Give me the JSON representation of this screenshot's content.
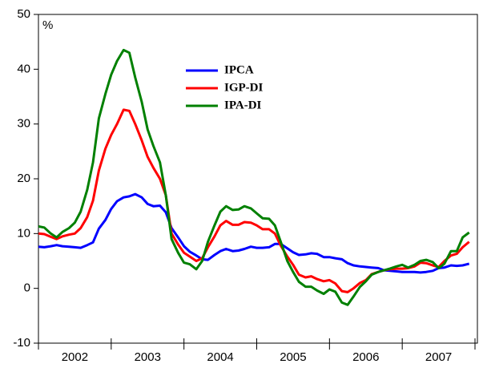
{
  "chart_data": {
    "type": "line",
    "y_label": "%",
    "x": [
      2002,
      2002.08,
      2002.17,
      2002.25,
      2002.33,
      2002.42,
      2002.5,
      2002.58,
      2002.67,
      2002.75,
      2002.83,
      2002.92,
      2003,
      2003.08,
      2003.17,
      2003.25,
      2003.33,
      2003.42,
      2003.5,
      2003.58,
      2003.67,
      2003.75,
      2003.83,
      2003.92,
      2004,
      2004.08,
      2004.17,
      2004.25,
      2004.33,
      2004.42,
      2004.5,
      2004.58,
      2004.67,
      2004.75,
      2004.83,
      2004.92,
      2005,
      2005.08,
      2005.17,
      2005.25,
      2005.33,
      2005.42,
      2005.5,
      2005.58,
      2005.67,
      2005.75,
      2005.83,
      2005.92,
      2006,
      2006.08,
      2006.17,
      2006.25,
      2006.33,
      2006.42,
      2006.5,
      2006.58,
      2006.67,
      2006.75,
      2006.83,
      2006.92,
      2007,
      2007.08,
      2007.17,
      2007.25,
      2007.33,
      2007.42,
      2007.5,
      2007.58,
      2007.67,
      2007.75,
      2007.83,
      2007.92
    ],
    "series": [
      {
        "name": "IPCA",
        "color": "#0000ff",
        "values": [
          7.6,
          7.5,
          7.7,
          7.9,
          7.7,
          7.6,
          7.5,
          7.4,
          7.9,
          8.4,
          10.9,
          12.5,
          14.5,
          15.9,
          16.6,
          16.8,
          17.2,
          16.6,
          15.4,
          15.0,
          15.1,
          13.9,
          11.0,
          9.3,
          7.7,
          6.7,
          6.0,
          5.3,
          5.2,
          6.1,
          6.8,
          7.2,
          6.8,
          6.9,
          7.2,
          7.6,
          7.4,
          7.4,
          7.5,
          8.1,
          8.1,
          7.3,
          6.6,
          6.1,
          6.2,
          6.4,
          6.3,
          5.7,
          5.7,
          5.5,
          5.3,
          4.6,
          4.2,
          4.0,
          3.9,
          3.8,
          3.7,
          3.3,
          3.2,
          3.1,
          3.0,
          3.0,
          3.0,
          2.9,
          3.0,
          3.2,
          3.7,
          3.8,
          4.2,
          4.1,
          4.2,
          4.5
        ]
      },
      {
        "name": "IGP-DI",
        "color": "#ff0000",
        "values": [
          10.0,
          9.9,
          9.4,
          9.0,
          9.5,
          9.8,
          10.0,
          11.0,
          13.0,
          16.0,
          21.5,
          25.5,
          28.0,
          30.0,
          32.6,
          32.4,
          30.0,
          27.0,
          24.0,
          22.0,
          20.0,
          17.0,
          10.0,
          8.0,
          6.5,
          5.8,
          5.0,
          5.5,
          7.5,
          9.5,
          11.5,
          12.3,
          11.6,
          11.6,
          12.1,
          12.0,
          11.5,
          10.8,
          10.8,
          10.0,
          7.8,
          5.8,
          4.3,
          2.5,
          2.0,
          2.2,
          1.7,
          1.3,
          1.5,
          0.9,
          -0.5,
          -0.7,
          0.0,
          1.0,
          1.5,
          2.6,
          3.0,
          3.3,
          3.5,
          3.6,
          3.6,
          3.7,
          4.0,
          4.7,
          4.6,
          4.2,
          3.9,
          5.0,
          6.0,
          6.3,
          7.5,
          8.5
        ]
      },
      {
        "name": "IPA-DI",
        "color": "#008000",
        "values": [
          11.3,
          11.1,
          10.0,
          9.3,
          10.3,
          11.0,
          12.0,
          14.0,
          18.0,
          23.0,
          31.0,
          35.5,
          39.0,
          41.5,
          43.5,
          43.0,
          38.5,
          34.0,
          29.0,
          26.0,
          23.0,
          17.0,
          9.0,
          6.5,
          4.7,
          4.4,
          3.5,
          5.0,
          8.5,
          11.5,
          14.0,
          15.0,
          14.3,
          14.4,
          15.0,
          14.6,
          13.7,
          12.8,
          12.7,
          11.5,
          8.5,
          5.0,
          3.0,
          1.2,
          0.3,
          0.3,
          -0.4,
          -1.0,
          -0.2,
          -0.6,
          -2.6,
          -3.0,
          -1.5,
          0.3,
          1.3,
          2.5,
          3.0,
          3.3,
          3.6,
          4.0,
          4.3,
          3.8,
          4.3,
          5.0,
          5.2,
          4.8,
          3.7,
          4.5,
          6.8,
          6.8,
          9.3,
          10.2
        ]
      }
    ],
    "xlim": [
      2002,
      2008
    ],
    "xticks": [
      2002,
      2003,
      2004,
      2005,
      2006,
      2007,
      2008
    ],
    "year_labels": [
      "2002",
      "2003",
      "2004",
      "2005",
      "2006",
      "2007"
    ],
    "ylim": [
      -10,
      50
    ],
    "yticks": [
      -10,
      0,
      10,
      20,
      30,
      40,
      50
    ],
    "grid": false
  }
}
